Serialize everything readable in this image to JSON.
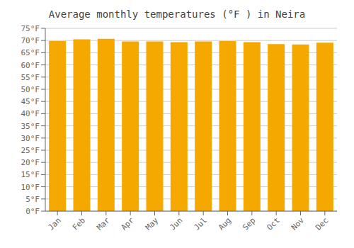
{
  "chart_data": {
    "type": "bar",
    "title": "Average monthly temperatures (°F ) in Neira",
    "categories": [
      "Jan",
      "Feb",
      "Mar",
      "Apr",
      "May",
      "Jun",
      "Jul",
      "Aug",
      "Sep",
      "Oct",
      "Nov",
      "Dec"
    ],
    "values": [
      69.8,
      70.5,
      70.7,
      69.6,
      69.6,
      69.3,
      69.6,
      69.8,
      69.3,
      68.5,
      68.4,
      69.1
    ],
    "color": "#F5A800",
    "ylim": [
      0,
      75
    ],
    "yticks": [
      {
        "value": 0,
        "label": "0°F"
      },
      {
        "value": 5,
        "label": "5°F"
      },
      {
        "value": 10,
        "label": "10°F"
      },
      {
        "value": 15,
        "label": "15°F"
      },
      {
        "value": 20,
        "label": "20°F"
      },
      {
        "value": 25,
        "label": "25°F"
      },
      {
        "value": 30,
        "label": "30°F"
      },
      {
        "value": 35,
        "label": "35°F"
      },
      {
        "value": 40,
        "label": "40°F"
      },
      {
        "value": 45,
        "label": "45°F"
      },
      {
        "value": 50,
        "label": "50°F"
      },
      {
        "value": 55,
        "label": "55°F"
      },
      {
        "value": 60,
        "label": "60°F"
      },
      {
        "value": 65,
        "label": "65°F"
      },
      {
        "value": 70,
        "label": "70°F"
      },
      {
        "value": 75,
        "label": "75°F"
      }
    ],
    "grid": true
  }
}
